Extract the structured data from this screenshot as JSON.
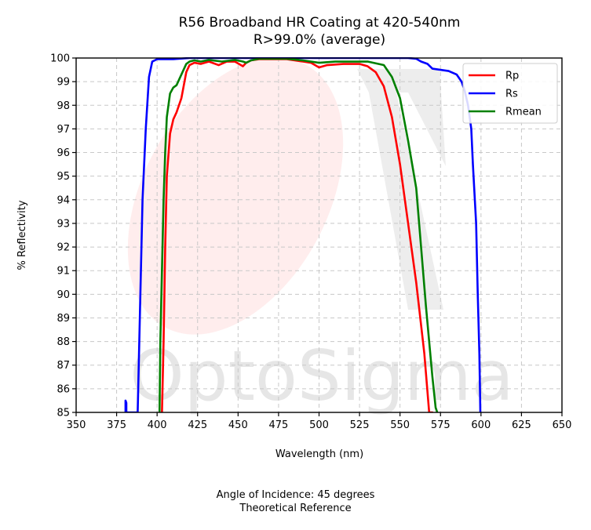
{
  "chart_data": {
    "type": "line",
    "title": "R56 Broadband HR Coating at 420-540nm",
    "subtitle": "R>99.0% (average)",
    "xlabel": "Wavelength (nm)",
    "ylabel": "% Reflectivity",
    "xlim": [
      350,
      650
    ],
    "ylim": [
      85,
      100
    ],
    "xticks": [
      "350",
      "375",
      "400",
      "425",
      "450",
      "475",
      "500",
      "525",
      "550",
      "575",
      "600",
      "625",
      "650"
    ],
    "yticks": [
      "85",
      "86",
      "87",
      "88",
      "89",
      "90",
      "91",
      "92",
      "93",
      "94",
      "95",
      "96",
      "97",
      "98",
      "99",
      "100"
    ],
    "grid": true,
    "legend_position": "top-right",
    "series": [
      {
        "name": "Rp",
        "color": "#ff0000",
        "x": [
          403,
          404,
          405,
          406,
          408,
          410,
          412,
          415,
          418,
          420,
          423,
          427,
          432,
          438,
          443,
          448,
          453,
          455,
          458,
          463,
          470,
          480,
          490,
          495,
          500,
          505,
          515,
          525,
          530,
          535,
          540,
          545,
          550,
          555,
          560,
          565,
          568,
          570
        ],
        "y": [
          85,
          88,
          92,
          95,
          96.8,
          97.4,
          97.7,
          98.3,
          99.4,
          99.7,
          99.8,
          99.75,
          99.85,
          99.7,
          99.85,
          99.85,
          99.65,
          99.8,
          99.9,
          99.95,
          99.95,
          99.95,
          99.85,
          99.8,
          99.6,
          99.7,
          99.75,
          99.75,
          99.65,
          99.4,
          98.8,
          97.5,
          95.5,
          93.0,
          90.5,
          87.5,
          85.0,
          85
        ]
      },
      {
        "name": "Rs",
        "color": "#0000ff",
        "x": [
          380.5,
          380.5,
          381,
          381,
          388,
          389,
          390,
          391,
          393,
          395,
          397,
          400,
          410,
          420,
          440,
          460,
          480,
          500,
          520,
          540,
          555,
          560,
          563,
          567,
          570,
          575,
          580,
          585,
          588,
          590,
          592,
          594,
          595,
          597,
          598,
          599,
          599.6
        ],
        "y": [
          85,
          85.5,
          85.4,
          85,
          85,
          88,
          91,
          94,
          97,
          99.2,
          99.85,
          99.95,
          99.95,
          100,
          100,
          100,
          100,
          100,
          100,
          100,
          100,
          99.97,
          99.85,
          99.75,
          99.55,
          99.5,
          99.45,
          99.3,
          99.0,
          98.6,
          98.0,
          97.0,
          95.5,
          93.0,
          90.0,
          87.5,
          85.0
        ]
      },
      {
        "name": "Rmean",
        "color": "#008000",
        "x": [
          401.5,
          402,
          403,
          404,
          405,
          406,
          408,
          410,
          412,
          415,
          418,
          420,
          423,
          427,
          432,
          440,
          448,
          453,
          455,
          458,
          463,
          470,
          480,
          490,
          500,
          510,
          520,
          530,
          540,
          545,
          550,
          555,
          560,
          563,
          566,
          568,
          570,
          572,
          573
        ],
        "y": [
          85,
          88,
          91,
          94,
          96,
          97.5,
          98.5,
          98.75,
          98.85,
          99.3,
          99.75,
          99.85,
          99.9,
          99.85,
          99.92,
          99.85,
          99.92,
          99.85,
          99.8,
          99.9,
          99.97,
          99.97,
          99.97,
          99.9,
          99.8,
          99.85,
          99.85,
          99.85,
          99.7,
          99.2,
          98.3,
          96.5,
          94.5,
          92.0,
          89.5,
          88.0,
          86.5,
          85.2,
          85
        ]
      }
    ],
    "footer": {
      "line1": "Angle of Incidence: 45 degrees",
      "line2": "Theoretical Reference"
    },
    "watermark": "OptoSigma"
  }
}
